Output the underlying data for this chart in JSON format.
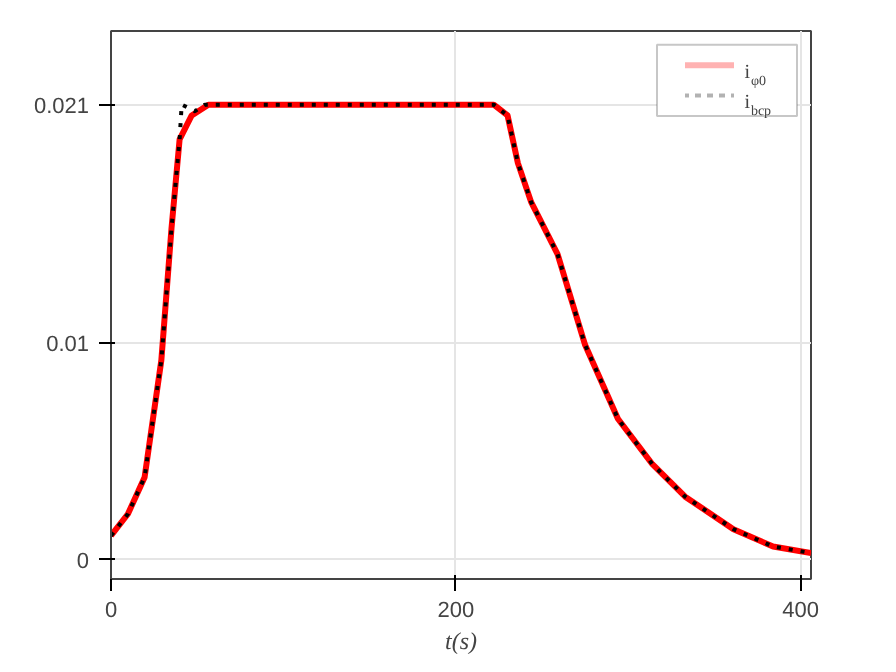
{
  "chart_data": {
    "type": "line",
    "xlabel": "t(s)",
    "xlim": [
      0,
      406
    ],
    "ylim": [
      -0.0009,
      0.0244
    ],
    "xticks": [
      0,
      200,
      400
    ],
    "yticks": [
      0,
      0.01,
      0.021
    ],
    "grid": true,
    "legend": "top right",
    "series": [
      {
        "name": "i$_{φ0}$",
        "color": "#ff0000",
        "line_style": "solid",
        "x": [
          0,
          9.8,
          19.5,
          29.2,
          35.1,
          39.8,
          46.8,
          56.5,
          100,
          150,
          200,
          222,
          230,
          236,
          243.7,
          259,
          275,
          294,
          314,
          333,
          361,
          384,
          406
        ],
        "values": [
          0.0011,
          0.0021,
          0.0038,
          0.0092,
          0.0153,
          0.0194,
          0.0205,
          0.021,
          0.021,
          0.021,
          0.021,
          0.021,
          0.0205,
          0.0183,
          0.0165,
          0.0141,
          0.0099,
          0.0065,
          0.0044,
          0.0029,
          0.0014,
          0.0006,
          0.0003
        ]
      },
      {
        "name": "i$_{bcp}$",
        "color": "#000000",
        "line_style": "dotted",
        "x": [
          0,
          9.8,
          19.5,
          29.2,
          35.1,
          39.8,
          41,
          48.7,
          54.5,
          100,
          150,
          200,
          222,
          230,
          236,
          243.7,
          259,
          275,
          294,
          314,
          333,
          361,
          384,
          406
        ],
        "values": [
          0.0011,
          0.0021,
          0.0038,
          0.0092,
          0.0153,
          0.0194,
          0.021,
          0.0207,
          0.021,
          0.021,
          0.021,
          0.021,
          0.021,
          0.0205,
          0.0183,
          0.0165,
          0.0141,
          0.0099,
          0.0065,
          0.0044,
          0.0029,
          0.0014,
          0.0006,
          0.0003
        ]
      }
    ]
  }
}
